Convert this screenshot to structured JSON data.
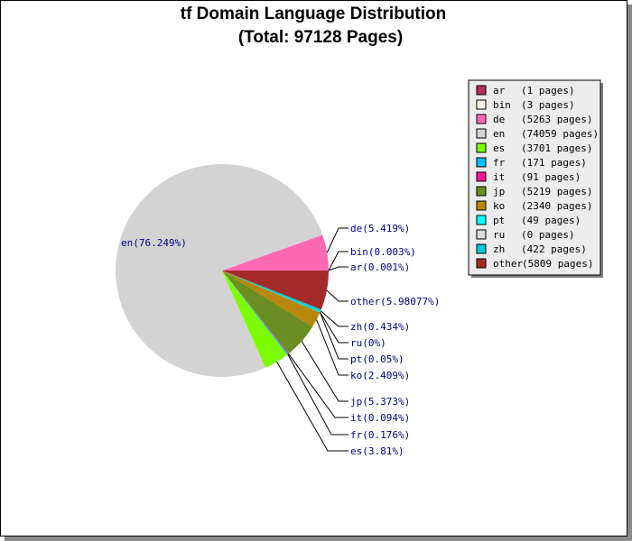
{
  "chart_data": {
    "type": "pie",
    "title": "tf Domain Language Distribution",
    "subtitle": "(Total: 97128 Pages)",
    "legend_position": "right",
    "slices": [
      {
        "key": "ar",
        "pages": 1,
        "legend": "(1 pages)",
        "percent": 0.001,
        "label": "ar(0.001%)",
        "color": "#b03060"
      },
      {
        "key": "bin",
        "pages": 3,
        "legend": "(3 pages)",
        "percent": 0.003,
        "label": "bin(0.003%)",
        "color": "#fff0e0"
      },
      {
        "key": "de",
        "pages": 5263,
        "legend": "(5263 pages)",
        "percent": 5.419,
        "label": "de(5.419%)",
        "color": "#ff69b4"
      },
      {
        "key": "en",
        "pages": 74059,
        "legend": "(74059 pages)",
        "percent": 76.249,
        "label": "en(76.249%)",
        "color": "#d3d3d3"
      },
      {
        "key": "es",
        "pages": 3701,
        "legend": "(3701 pages)",
        "percent": 3.81,
        "label": "es(3.81%)",
        "color": "#7cfc00"
      },
      {
        "key": "fr",
        "pages": 171,
        "legend": "(171 pages)",
        "percent": 0.176,
        "label": "fr(0.176%)",
        "color": "#00bfff"
      },
      {
        "key": "it",
        "pages": 91,
        "legend": "(91 pages)",
        "percent": 0.094,
        "label": "it(0.094%)",
        "color": "#ff1493"
      },
      {
        "key": "jp",
        "pages": 5219,
        "legend": "(5219 pages)",
        "percent": 5.373,
        "label": "jp(5.373%)",
        "color": "#6b8e23"
      },
      {
        "key": "ko",
        "pages": 2340,
        "legend": "(2340 pages)",
        "percent": 2.409,
        "label": "ko(2.409%)",
        "color": "#b8860b"
      },
      {
        "key": "pt",
        "pages": 49,
        "legend": "(49 pages)",
        "percent": 0.05,
        "label": "pt(0.05%)",
        "color": "#00ffff"
      },
      {
        "key": "ru",
        "pages": 0,
        "legend": "(0 pages)",
        "percent": 0,
        "label": "ru(0%)",
        "color": "#dcdcdc"
      },
      {
        "key": "zh",
        "pages": 422,
        "legend": "(422 pages)",
        "percent": 0.434,
        "label": "zh(0.434%)",
        "color": "#00ced1"
      },
      {
        "key": "other",
        "pages": 5809,
        "legend": "(5809 pages)",
        "percent": 5.98077,
        "label": "other(5.98077%)",
        "color": "#a52a2a"
      }
    ]
  }
}
